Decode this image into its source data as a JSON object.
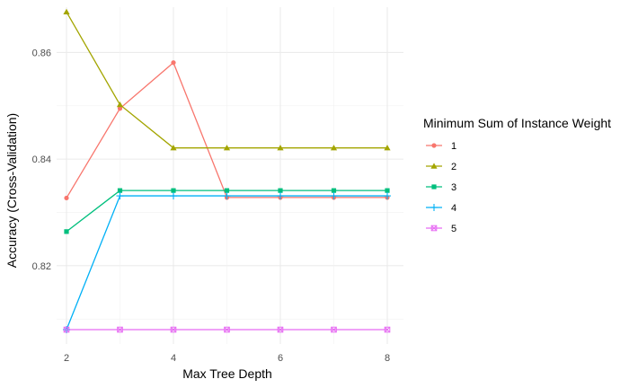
{
  "chart_data": {
    "type": "line",
    "xlabel": "Max Tree Depth",
    "ylabel": "Accuracy (Cross-Validation)",
    "x": [
      2,
      3,
      4,
      5,
      6,
      7,
      8
    ],
    "xlim": [
      2,
      8
    ],
    "ylim": [
      0.8075,
      0.8685
    ],
    "x_ticks": [
      2,
      4,
      6,
      8
    ],
    "y_ticks": [
      0.82,
      0.84,
      0.86
    ],
    "x_tick_labels": [
      "2",
      "4",
      "6",
      "8"
    ],
    "y_tick_labels": [
      "0.82",
      "0.84",
      "0.86"
    ],
    "grid": true,
    "legend": {
      "title": "Minimum Sum of Instance Weight",
      "position": "right"
    },
    "series": [
      {
        "name": "1",
        "color": "#F8766D",
        "marker": "circle",
        "values": [
          0.8327,
          0.8495,
          0.8581,
          0.8328,
          0.8328,
          0.8328,
          0.8328
        ]
      },
      {
        "name": "2",
        "color": "#A3A500",
        "marker": "triangle",
        "values": [
          0.8676,
          0.8502,
          0.8421,
          0.8421,
          0.8421,
          0.8421,
          0.8421
        ]
      },
      {
        "name": "3",
        "color": "#00BF7D",
        "marker": "square",
        "values": [
          0.8264,
          0.8341,
          0.8341,
          0.8341,
          0.8341,
          0.8341,
          0.8341
        ]
      },
      {
        "name": "4",
        "color": "#00B0F6",
        "marker": "plus",
        "values": [
          0.808,
          0.8331,
          0.8331,
          0.8331,
          0.8331,
          0.8331,
          0.8331
        ]
      },
      {
        "name": "5",
        "color": "#E76BF3",
        "marker": "boxx",
        "values": [
          0.808,
          0.808,
          0.808,
          0.808,
          0.808,
          0.808,
          0.808
        ]
      }
    ]
  }
}
